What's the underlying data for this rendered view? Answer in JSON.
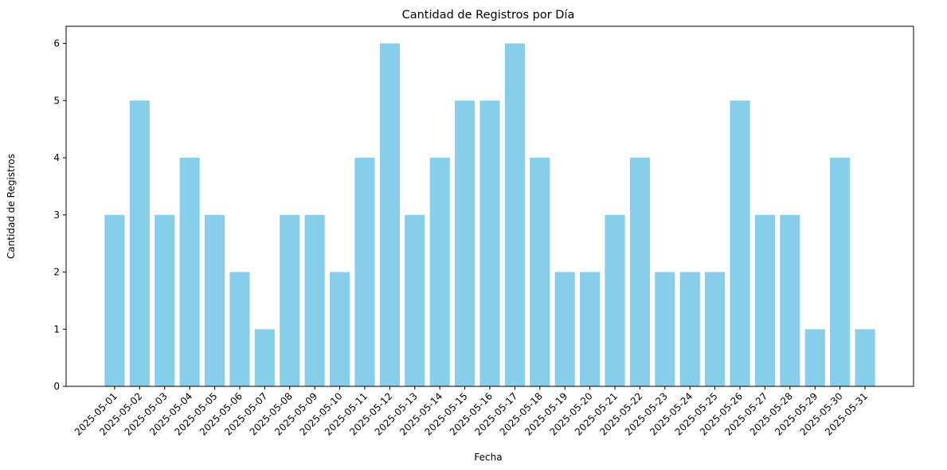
{
  "chart_data": {
    "type": "bar",
    "title": "Cantidad de Registros por Día",
    "xlabel": "Fecha",
    "ylabel": "Cantidad de Registros",
    "ylim": [
      0,
      6.3
    ],
    "yticks": [
      0,
      1,
      2,
      3,
      4,
      5,
      6
    ],
    "grid": false,
    "bar_color": "#87CEEB",
    "categories": [
      "2025-05-01",
      "2025-05-02",
      "2025-05-03",
      "2025-05-04",
      "2025-05-05",
      "2025-05-06",
      "2025-05-07",
      "2025-05-08",
      "2025-05-09",
      "2025-05-10",
      "2025-05-11",
      "2025-05-12",
      "2025-05-13",
      "2025-05-14",
      "2025-05-15",
      "2025-05-16",
      "2025-05-17",
      "2025-05-18",
      "2025-05-19",
      "2025-05-20",
      "2025-05-21",
      "2025-05-22",
      "2025-05-23",
      "2025-05-24",
      "2025-05-25",
      "2025-05-26",
      "2025-05-27",
      "2025-05-28",
      "2025-05-29",
      "2025-05-30",
      "2025-05-31"
    ],
    "values": [
      3,
      5,
      3,
      4,
      3,
      2,
      1,
      3,
      3,
      2,
      4,
      6,
      3,
      4,
      5,
      5,
      6,
      4,
      2,
      2,
      3,
      4,
      2,
      2,
      2,
      5,
      3,
      3,
      1,
      4,
      1
    ]
  }
}
